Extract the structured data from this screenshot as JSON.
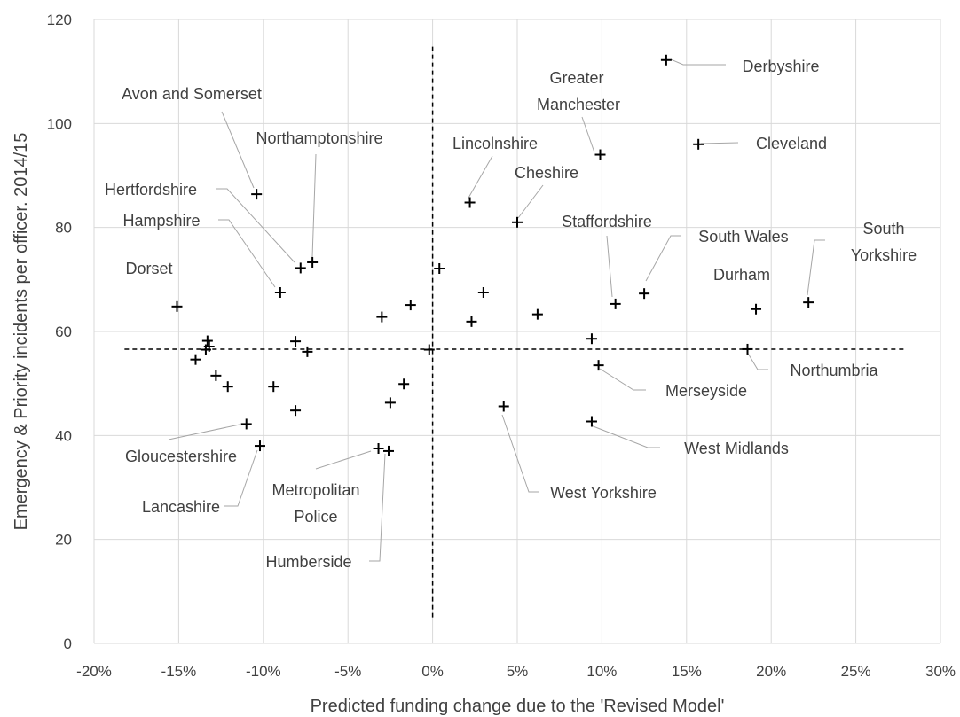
{
  "chart_data": {
    "type": "scatter",
    "xlabel": "Predicted funding change due to the 'Revised Model'",
    "ylabel": "Emergency & Priority incidents per officer. 2014/15",
    "xlim": [
      -20,
      30
    ],
    "ylim": [
      0,
      120
    ],
    "x_ticks": [
      "-20%",
      "-15%",
      "-10%",
      "-5%",
      "0%",
      "5%",
      "10%",
      "15%",
      "20%",
      "25%",
      "30%"
    ],
    "y_ticks": [
      "0",
      "20",
      "40",
      "60",
      "80",
      "100",
      "120"
    ],
    "grid": true,
    "marker": "+",
    "points": [
      {
        "x": -15.1,
        "y": 64.8,
        "label": "Dorset"
      },
      {
        "x": -10.4,
        "y": 86.4,
        "label": "Avon and Somerset"
      },
      {
        "x": -7.8,
        "y": 72.2,
        "label": "Hertfordshire"
      },
      {
        "x": -7.1,
        "y": 73.3,
        "label": "Northamptonshire"
      },
      {
        "x": -9.0,
        "y": 67.5,
        "label": "Hampshire"
      },
      {
        "x": -11.0,
        "y": 42.2,
        "label": "Gloucestershire"
      },
      {
        "x": -10.2,
        "y": 38.0,
        "label": "Lancashire"
      },
      {
        "x": -3.2,
        "y": 37.5,
        "label": "Metropolitan Police"
      },
      {
        "x": -2.6,
        "y": 37.0,
        "label": "Humberside"
      },
      {
        "x": 2.2,
        "y": 84.8,
        "label": "Lincolnshire"
      },
      {
        "x": 5.0,
        "y": 81.0,
        "label": "Cheshire"
      },
      {
        "x": 9.9,
        "y": 94.0,
        "label": "Greater Manchester"
      },
      {
        "x": 13.8,
        "y": 112.2,
        "label": "Derbyshire"
      },
      {
        "x": 15.7,
        "y": 96.0,
        "label": "Cleveland"
      },
      {
        "x": 10.8,
        "y": 65.3,
        "label": "Staffordshire"
      },
      {
        "x": 12.5,
        "y": 67.3,
        "label": "South Wales"
      },
      {
        "x": 19.1,
        "y": 64.3,
        "label": "Durham"
      },
      {
        "x": 22.2,
        "y": 65.6,
        "label": "South Yorkshire"
      },
      {
        "x": 18.6,
        "y": 56.6,
        "label": "Northumbria"
      },
      {
        "x": 9.8,
        "y": 53.5,
        "label": "Merseyside"
      },
      {
        "x": 9.4,
        "y": 42.7,
        "label": "West Midlands"
      },
      {
        "x": 4.2,
        "y": 45.6,
        "label": "West Yorkshire"
      },
      {
        "x": -13.3,
        "y": 58.2
      },
      {
        "x": -13.2,
        "y": 57.1
      },
      {
        "x": -13.4,
        "y": 56.5
      },
      {
        "x": -14.0,
        "y": 54.6
      },
      {
        "x": -12.8,
        "y": 51.5
      },
      {
        "x": -12.1,
        "y": 49.4
      },
      {
        "x": -9.4,
        "y": 49.4
      },
      {
        "x": -8.1,
        "y": 58.1
      },
      {
        "x": -7.4,
        "y": 56.1
      },
      {
        "x": -8.1,
        "y": 44.8
      },
      {
        "x": -3.0,
        "y": 62.8
      },
      {
        "x": -1.3,
        "y": 65.1
      },
      {
        "x": 0.4,
        "y": 72.1
      },
      {
        "x": -0.2,
        "y": 56.5
      },
      {
        "x": -1.7,
        "y": 49.9
      },
      {
        "x": -2.5,
        "y": 46.3
      },
      {
        "x": 3.0,
        "y": 67.5
      },
      {
        "x": 2.3,
        "y": 61.9
      },
      {
        "x": 6.2,
        "y": 63.3
      },
      {
        "x": 9.4,
        "y": 58.6
      }
    ],
    "reference_lines": [
      {
        "orientation": "horizontal",
        "y": 56.6,
        "x_from": -18.2,
        "x_to": 28.0,
        "style": "dashed"
      },
      {
        "orientation": "vertical",
        "x": 0.0,
        "y_from": 5,
        "y_to": 115,
        "style": "dashed"
      }
    ]
  }
}
